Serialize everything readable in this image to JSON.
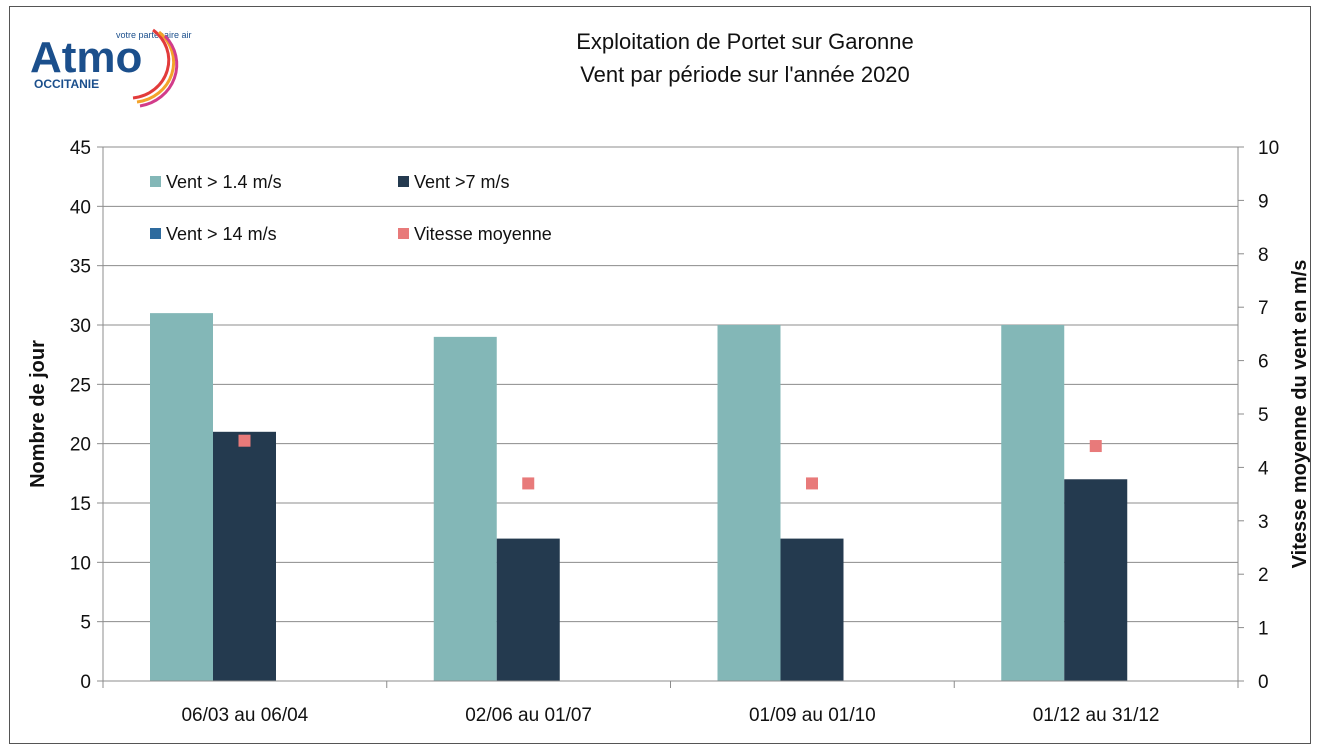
{
  "logo": {
    "brand": "Atmo",
    "tagline": "votre partenaire air",
    "region": "OCCITANIE"
  },
  "chart_data": {
    "type": "bar",
    "title": "Exploitation de Portet sur Garonne",
    "subtitle": "Vent par période sur l'année 2020",
    "categories": [
      "06/03 au 06/04",
      "02/06 au 01/07",
      "01/09 au 01/10",
      "01/12 au 31/12"
    ],
    "series": [
      {
        "name": "Vent > 1.4 m/s",
        "axis": "left",
        "type": "bar",
        "color": "#83b7b7",
        "values": [
          31,
          29,
          30,
          30
        ]
      },
      {
        "name": "Vent >7 m/s",
        "axis": "left",
        "type": "bar",
        "color": "#243a4f",
        "values": [
          21,
          12,
          12,
          17
        ]
      },
      {
        "name": "Vent > 14 m/s",
        "axis": "left",
        "type": "bar",
        "color": "#2e6b9e",
        "values": [
          0,
          0,
          0,
          0
        ]
      },
      {
        "name": "Vitesse moyenne",
        "axis": "right",
        "type": "marker",
        "color": "#e87a7a",
        "values": [
          4.5,
          3.7,
          3.7,
          4.4
        ]
      }
    ],
    "ylabel": "Nombre de jour",
    "y2label": "Vitesse moyenne du vent en m/s",
    "ylim": [
      0,
      45
    ],
    "y2lim": [
      0,
      10
    ],
    "yticks": [
      0,
      5,
      10,
      15,
      20,
      25,
      30,
      35,
      40,
      45
    ],
    "y2ticks": [
      0,
      1,
      2,
      3,
      4,
      5,
      6,
      7,
      8,
      9,
      10
    ],
    "grid": true,
    "legend_position": "top-left"
  }
}
